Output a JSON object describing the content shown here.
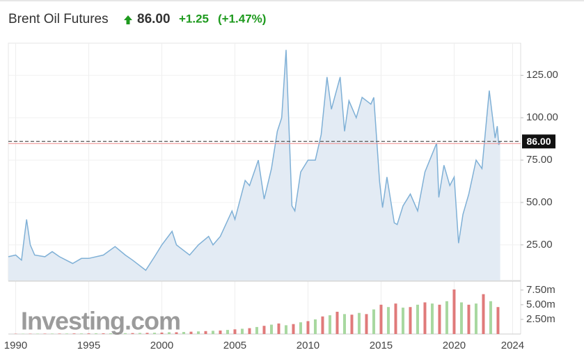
{
  "header": {
    "title": "Brent Oil Futures",
    "price": "86.00",
    "change": "+1.25",
    "change_pct": "(+1.47%)"
  },
  "watermark": "Investing.com",
  "chart_data": [
    {
      "type": "area",
      "x": [
        1989.5,
        1990.0,
        1990.4,
        1990.6,
        1990.75,
        1991.0,
        1991.3,
        1992.0,
        1992.5,
        1993.0,
        1993.9,
        1994.5,
        1995.0,
        1996.0,
        1996.8,
        1997.5,
        1998.0,
        1998.9,
        1999.5,
        2000.0,
        2000.7,
        2001.0,
        2001.9,
        2002.5,
        2003.2,
        2003.5,
        2004.0,
        2004.8,
        2005.0,
        2005.7,
        2006.0,
        2006.6,
        2007.0,
        2007.5,
        2007.9,
        2008.2,
        2008.5,
        2008.9,
        2009.1,
        2009.5,
        2010.0,
        2010.5,
        2010.9,
        2011.3,
        2011.6,
        2012.2,
        2012.5,
        2012.8,
        2013.3,
        2013.7,
        2014.3,
        2014.5,
        2014.9,
        2015.1,
        2015.4,
        2015.9,
        2016.1,
        2016.5,
        2017.0,
        2017.5,
        2018.0,
        2018.8,
        2018.95,
        2019.3,
        2019.7,
        2020.0,
        2020.3,
        2020.6,
        2021.0,
        2021.5,
        2021.9,
        2022.4,
        2022.7,
        2022.8,
        2022.95,
        2023.05,
        2023.15
      ],
      "values": [
        18,
        19,
        16,
        30,
        40,
        25,
        19,
        18,
        21,
        18,
        14,
        17,
        17,
        19,
        24,
        19,
        16,
        10,
        18,
        25,
        33,
        25,
        19,
        25,
        30,
        25,
        30,
        45,
        40,
        63,
        60,
        75,
        52,
        70,
        92,
        100,
        140,
        48,
        45,
        68,
        75,
        75,
        90,
        124,
        105,
        124,
        92,
        110,
        100,
        112,
        108,
        112,
        62,
        47,
        65,
        38,
        37,
        48,
        55,
        45,
        68,
        85,
        53,
        72,
        60,
        65,
        26,
        43,
        55,
        75,
        70,
        116,
        95,
        88,
        95,
        84,
        86
      ],
      "color": "#7fb0d6",
      "fill_color": "#e3ebf4",
      "xlim": [
        1989.5,
        2024.55
      ],
      "ylim": [
        4,
        144
      ],
      "xticks": [
        1990,
        1995,
        2000,
        2005,
        2010,
        2015,
        2020,
        2024
      ],
      "yticks": [
        {
          "value": 25,
          "label": "25.00"
        },
        {
          "value": 50,
          "label": "50.00"
        },
        {
          "value": 75,
          "label": "75.00"
        },
        {
          "value": 100,
          "label": "100.00"
        },
        {
          "value": 125,
          "label": "125.00"
        }
      ],
      "last_price": {
        "value": 86,
        "label": "86.00"
      },
      "reference_line": 84.75,
      "grid": true
    },
    {
      "type": "bar",
      "x": [
        1990.0,
        1990.5,
        1991.0,
        1991.5,
        1992.0,
        1992.5,
        1993.0,
        1993.5,
        1994.0,
        1994.5,
        1995.0,
        1995.5,
        1996.0,
        1996.5,
        1997.0,
        1997.5,
        1998.0,
        1998.5,
        1999.0,
        1999.5,
        2000.0,
        2000.5,
        2001.0,
        2001.5,
        2002.0,
        2002.5,
        2003.0,
        2003.5,
        2004.0,
        2004.5,
        2005.0,
        2005.5,
        2006.0,
        2006.5,
        2007.0,
        2007.5,
        2008.0,
        2008.5,
        2009.0,
        2009.5,
        2010.0,
        2010.5,
        2011.0,
        2011.5,
        2012.0,
        2012.5,
        2013.0,
        2013.5,
        2014.0,
        2014.5,
        2015.0,
        2015.5,
        2016.0,
        2016.5,
        2017.0,
        2017.5,
        2018.0,
        2018.5,
        2019.0,
        2019.5,
        2020.0,
        2020.5,
        2021.0,
        2021.5,
        2022.0,
        2022.5,
        2023.0
      ],
      "values": [
        0.05,
        0.06,
        0.06,
        0.07,
        0.07,
        0.08,
        0.08,
        0.09,
        0.1,
        0.1,
        0.11,
        0.12,
        0.12,
        0.13,
        0.14,
        0.15,
        0.16,
        0.18,
        0.2,
        0.22,
        0.25,
        0.3,
        0.3,
        0.35,
        0.4,
        0.45,
        0.5,
        0.55,
        0.6,
        0.7,
        0.8,
        0.9,
        1.0,
        1.2,
        1.4,
        1.6,
        1.8,
        1.5,
        1.7,
        2.0,
        2.2,
        2.5,
        3.0,
        3.2,
        3.8,
        3.4,
        3.3,
        3.6,
        3.4,
        4.2,
        5.0,
        4.6,
        5.2,
        4.5,
        4.6,
        5.0,
        5.4,
        5.2,
        5.0,
        5.6,
        7.6,
        5.4,
        5.0,
        5.2,
        6.8,
        5.6,
        4.6
      ],
      "colors": [
        "#e07a7a",
        "#a8d8a0",
        "#e07a7a",
        "#a8d8a0",
        "#e07a7a",
        "#a8d8a0",
        "#e07a7a",
        "#a8d8a0",
        "#e07a7a",
        "#a8d8a0",
        "#e07a7a",
        "#a8d8a0",
        "#e07a7a",
        "#a8d8a0",
        "#e07a7a",
        "#a8d8a0",
        "#e07a7a",
        "#a8d8a0",
        "#e07a7a",
        "#a8d8a0",
        "#e07a7a",
        "#a8d8a0",
        "#e07a7a",
        "#a8d8a0",
        "#e07a7a",
        "#a8d8a0",
        "#e07a7a",
        "#a8d8a0",
        "#e07a7a",
        "#a8d8a0",
        "#e07a7a",
        "#a8d8a0",
        "#e07a7a",
        "#a8d8a0",
        "#e07a7a",
        "#a8d8a0",
        "#e07a7a",
        "#a8d8a0",
        "#e07a7a",
        "#a8d8a0",
        "#e07a7a",
        "#a8d8a0",
        "#e07a7a",
        "#a8d8a0",
        "#e07a7a",
        "#a8d8a0",
        "#e07a7a",
        "#a8d8a0",
        "#e07a7a",
        "#a8d8a0",
        "#e07a7a",
        "#a8d8a0",
        "#e07a7a",
        "#a8d8a0",
        "#e07a7a",
        "#a8d8a0",
        "#e07a7a",
        "#a8d8a0",
        "#e07a7a",
        "#a8d8a0",
        "#e07a7a",
        "#a8d8a0",
        "#e07a7a",
        "#a8d8a0",
        "#e07a7a",
        "#a8d8a0",
        "#e07a7a"
      ],
      "xlim": [
        1989.5,
        2024.55
      ],
      "ylim": [
        0,
        8.9
      ],
      "yticks": [
        {
          "value": 2.5,
          "label": "2.50m"
        },
        {
          "value": 5,
          "label": "5.00m"
        },
        {
          "value": 7.5,
          "label": "7.50m"
        }
      ]
    }
  ]
}
